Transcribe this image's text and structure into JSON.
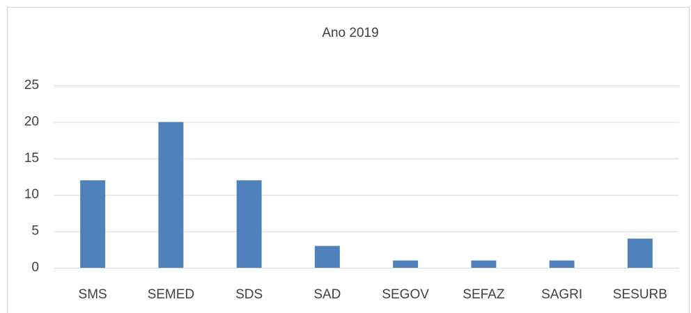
{
  "chart_data": {
    "type": "bar",
    "title": "Ano 2019",
    "categories": [
      "SMS",
      "SEMED",
      "SDS",
      "SAD",
      "SEGOV",
      "SEFAZ",
      "SAGRI",
      "SESURB"
    ],
    "values": [
      12,
      20,
      12,
      3,
      1,
      1,
      1,
      4
    ],
    "color": "#4f81bd",
    "ylim": [
      0,
      25
    ],
    "yticks": [
      0,
      5,
      10,
      15,
      20,
      25
    ],
    "grid": true
  }
}
